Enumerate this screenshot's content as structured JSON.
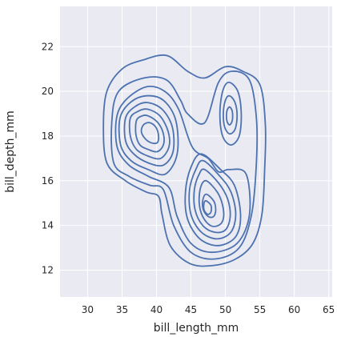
{
  "chart_data": {
    "type": "kde-contour",
    "title": "",
    "xlabel": "bill_length_mm",
    "ylabel": "bill_depth_mm",
    "xlim": [
      26,
      65.5
    ],
    "ylim": [
      10.8,
      23.8
    ],
    "x_ticks": [
      30,
      35,
      40,
      45,
      50,
      55,
      60,
      65
    ],
    "y_ticks": [
      12,
      14,
      16,
      18,
      20,
      22
    ],
    "grid": true,
    "legend": "none",
    "colors": {
      "line": "#4c72b0",
      "background": "#eaeaf2",
      "grid": "#ffffff"
    },
    "clusters": [
      {
        "name_hint": "left",
        "peak": [
          39.0,
          18.3
        ]
      },
      {
        "name_hint": "lower",
        "peak": [
          46.8,
          14.8
        ]
      },
      {
        "name_hint": "upper-right",
        "peak": [
          50.6,
          18.9
        ]
      }
    ],
    "contours": [
      {
        "level": 1,
        "points": [
          [
            38.0,
            21.4
          ],
          [
            41.5,
            21.6
          ],
          [
            44.5,
            20.9
          ],
          [
            47.0,
            20.6
          ],
          [
            50.0,
            21.1
          ],
          [
            52.5,
            20.9
          ],
          [
            55.0,
            20.3
          ],
          [
            55.8,
            18.5
          ],
          [
            55.7,
            16.5
          ],
          [
            55.3,
            14.5
          ],
          [
            54.0,
            13.2
          ],
          [
            51.5,
            12.5
          ],
          [
            48.0,
            12.2
          ],
          [
            44.8,
            12.3
          ],
          [
            42.0,
            13.1
          ],
          [
            40.8,
            14.5
          ],
          [
            40.3,
            15.3
          ],
          [
            38.5,
            15.5
          ],
          [
            35.5,
            16.0
          ],
          [
            32.8,
            16.8
          ],
          [
            32.3,
            18.5
          ],
          [
            32.8,
            20.0
          ],
          [
            35.0,
            21.0
          ]
        ]
      },
      {
        "level": 2,
        "points": [
          [
            38.2,
            20.6
          ],
          [
            41.5,
            20.5
          ],
          [
            43.5,
            19.6
          ],
          [
            44.5,
            19.0
          ],
          [
            47.0,
            18.6
          ],
          [
            49.0,
            20.4
          ],
          [
            51.0,
            20.9
          ],
          [
            53.5,
            20.5
          ],
          [
            54.5,
            18.8
          ],
          [
            54.5,
            16.8
          ],
          [
            53.8,
            14.5
          ],
          [
            52.0,
            13.0
          ],
          [
            48.5,
            12.5
          ],
          [
            45.0,
            12.8
          ],
          [
            42.5,
            14.0
          ],
          [
            41.0,
            15.6
          ],
          [
            39.0,
            15.8
          ],
          [
            36.0,
            16.2
          ],
          [
            33.8,
            16.8
          ],
          [
            33.5,
            18.6
          ],
          [
            34.5,
            20.0
          ]
        ]
      },
      {
        "level": 3,
        "points": [
          [
            38.5,
            20.2
          ],
          [
            41.2,
            20.0
          ],
          [
            43.2,
            19.2
          ],
          [
            45.2,
            17.5
          ],
          [
            47.5,
            17.0
          ],
          [
            49.0,
            16.4
          ],
          [
            50.5,
            16.5
          ],
          [
            53.0,
            16.3
          ],
          [
            53.5,
            14.5
          ],
          [
            51.7,
            13.2
          ],
          [
            48.0,
            12.8
          ],
          [
            45.0,
            13.2
          ],
          [
            43.0,
            14.4
          ],
          [
            41.8,
            15.7
          ],
          [
            38.8,
            16.2
          ],
          [
            36.0,
            16.7
          ],
          [
            34.3,
            17.5
          ],
          [
            34.2,
            18.8
          ],
          [
            35.5,
            19.6
          ]
        ]
      },
      {
        "level": 4,
        "points": [
          [
            38.5,
            19.8
          ],
          [
            41.0,
            19.6
          ],
          [
            42.8,
            18.7
          ],
          [
            43.0,
            17.2
          ],
          [
            41.3,
            16.3
          ],
          [
            38.8,
            16.5
          ],
          [
            36.3,
            16.9
          ],
          [
            34.8,
            17.6
          ],
          [
            34.7,
            18.8
          ],
          [
            36.2,
            19.5
          ]
        ]
      },
      {
        "level": 5,
        "points": [
          [
            38.6,
            19.5
          ],
          [
            40.8,
            19.2
          ],
          [
            42.3,
            18.4
          ],
          [
            42.4,
            17.3
          ],
          [
            41.0,
            16.7
          ],
          [
            38.8,
            16.8
          ],
          [
            36.7,
            17.2
          ],
          [
            35.5,
            17.8
          ],
          [
            35.5,
            18.8
          ],
          [
            36.8,
            19.3
          ]
        ]
      },
      {
        "level": 6,
        "points": [
          [
            38.7,
            19.2
          ],
          [
            40.5,
            18.9
          ],
          [
            41.7,
            18.2
          ],
          [
            41.8,
            17.5
          ],
          [
            40.6,
            17.0
          ],
          [
            38.8,
            17.1
          ],
          [
            37.1,
            17.4
          ],
          [
            36.2,
            18.0
          ],
          [
            36.2,
            18.8
          ],
          [
            37.3,
            19.1
          ]
        ]
      },
      {
        "level": 7,
        "points": [
          [
            38.8,
            18.9
          ],
          [
            40.2,
            18.6
          ],
          [
            41.0,
            18.1
          ],
          [
            41.0,
            17.6
          ],
          [
            40.1,
            17.3
          ],
          [
            38.8,
            17.4
          ],
          [
            37.6,
            17.6
          ],
          [
            37.0,
            18.1
          ],
          [
            37.1,
            18.7
          ],
          [
            37.9,
            18.9
          ]
        ]
      },
      {
        "level": 8,
        "points": [
          [
            39.0,
            18.6
          ],
          [
            39.9,
            18.4
          ],
          [
            40.3,
            18.0
          ],
          [
            40.1,
            17.7
          ],
          [
            39.2,
            17.7
          ],
          [
            38.3,
            17.9
          ],
          [
            37.8,
            18.2
          ],
          [
            38.1,
            18.5
          ]
        ]
      },
      {
        "level": 4,
        "points": [
          [
            46.5,
            17.2
          ],
          [
            49.3,
            16.5
          ],
          [
            51.3,
            15.8
          ],
          [
            52.2,
            14.5
          ],
          [
            51.5,
            13.5
          ],
          [
            49.0,
            13.1
          ],
          [
            46.3,
            13.4
          ],
          [
            44.5,
            14.3
          ],
          [
            44.2,
            15.5
          ],
          [
            45.0,
            16.6
          ]
        ]
      },
      {
        "level": 5,
        "points": [
          [
            46.8,
            16.9
          ],
          [
            49.2,
            16.2
          ],
          [
            50.8,
            15.5
          ],
          [
            51.5,
            14.5
          ],
          [
            50.8,
            13.7
          ],
          [
            48.8,
            13.4
          ],
          [
            46.5,
            13.7
          ],
          [
            45.0,
            14.5
          ],
          [
            44.8,
            15.6
          ],
          [
            45.7,
            16.5
          ]
        ]
      },
      {
        "level": 6,
        "points": [
          [
            47.0,
            16.5
          ],
          [
            49.0,
            15.9
          ],
          [
            50.3,
            15.2
          ],
          [
            50.7,
            14.4
          ],
          [
            50.0,
            13.8
          ],
          [
            48.4,
            13.7
          ],
          [
            46.7,
            14.0
          ],
          [
            45.6,
            14.7
          ],
          [
            45.5,
            15.6
          ],
          [
            46.2,
            16.3
          ]
        ]
      },
      {
        "level": 7,
        "points": [
          [
            47.2,
            16.0
          ],
          [
            48.8,
            15.5
          ],
          [
            49.6,
            14.9
          ],
          [
            49.7,
            14.3
          ],
          [
            49.0,
            14.0
          ],
          [
            47.8,
            14.0
          ],
          [
            46.7,
            14.4
          ],
          [
            46.2,
            15.0
          ],
          [
            46.4,
            15.7
          ]
        ]
      },
      {
        "level": 8,
        "points": [
          [
            47.2,
            15.4
          ],
          [
            48.3,
            15.1
          ],
          [
            48.6,
            14.7
          ],
          [
            48.3,
            14.4
          ],
          [
            47.5,
            14.4
          ],
          [
            46.8,
            14.7
          ],
          [
            46.7,
            15.1
          ]
        ]
      },
      {
        "level": 9,
        "points": [
          [
            47.2,
            15.1
          ],
          [
            47.9,
            14.9
          ],
          [
            47.9,
            14.6
          ],
          [
            47.4,
            14.5
          ],
          [
            46.9,
            14.7
          ],
          [
            46.9,
            15.0
          ]
        ]
      },
      {
        "level": 3,
        "points": [
          [
            50.5,
            20.4
          ],
          [
            51.8,
            20.0
          ],
          [
            52.3,
            19.0
          ],
          [
            52.0,
            18.0
          ],
          [
            50.8,
            17.6
          ],
          [
            49.6,
            18.0
          ],
          [
            49.2,
            19.0
          ],
          [
            49.6,
            20.0
          ]
        ]
      },
      {
        "level": 4,
        "points": [
          [
            50.6,
            19.8
          ],
          [
            51.4,
            19.5
          ],
          [
            51.7,
            18.9
          ],
          [
            51.4,
            18.3
          ],
          [
            50.6,
            18.1
          ],
          [
            49.9,
            18.4
          ],
          [
            49.7,
            19.0
          ],
          [
            50.0,
            19.6
          ]
        ]
      },
      {
        "level": 5,
        "points": [
          [
            50.6,
            19.3
          ],
          [
            51.0,
            19.1
          ],
          [
            51.0,
            18.7
          ],
          [
            50.6,
            18.5
          ],
          [
            50.2,
            18.7
          ],
          [
            50.2,
            19.1
          ]
        ]
      }
    ]
  }
}
